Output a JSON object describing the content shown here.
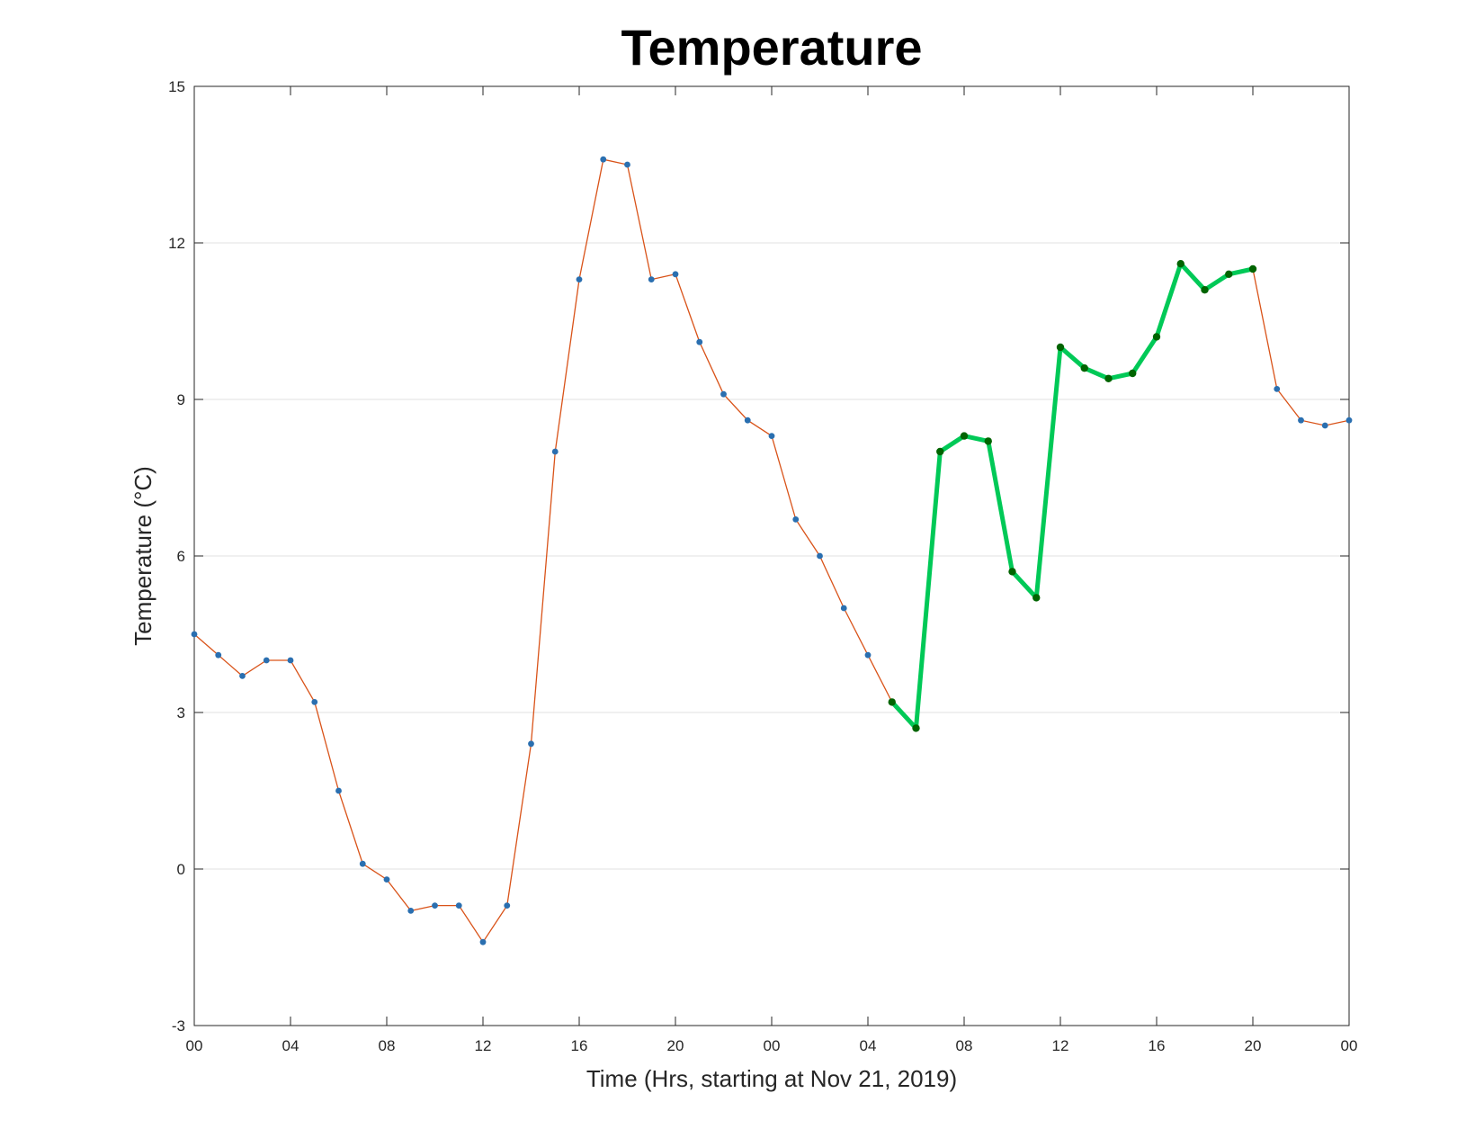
{
  "chart_data": {
    "type": "line",
    "title": "Temperature",
    "xlabel": "Time (Hrs, starting at Nov 21, 2019)",
    "ylabel": "Temperature (°C)",
    "xlim": [
      0,
      48
    ],
    "ylim": [
      -3,
      15
    ],
    "yticks": [
      -3,
      0,
      3,
      6,
      9,
      12,
      15
    ],
    "xtick_positions": [
      0,
      4,
      8,
      12,
      16,
      20,
      24,
      28,
      32,
      36,
      40,
      44,
      48
    ],
    "xtick_labels": [
      "00",
      "04",
      "08",
      "12",
      "16",
      "20",
      "00",
      "04",
      "08",
      "12",
      "16",
      "20",
      "00"
    ],
    "grid": "horizontal",
    "x": [
      0,
      1,
      2,
      3,
      4,
      5,
      6,
      7,
      8,
      9,
      10,
      11,
      12,
      13,
      14,
      15,
      16,
      17,
      18,
      19,
      20,
      21,
      22,
      23,
      24,
      25,
      26,
      27,
      28,
      29,
      30,
      31,
      32,
      33,
      34,
      35,
      36,
      37,
      38,
      39,
      40,
      41,
      42,
      43,
      44,
      45,
      46,
      47,
      48
    ],
    "values": [
      4.5,
      4.1,
      3.7,
      4.0,
      4.0,
      3.2,
      1.5,
      0.1,
      -0.2,
      -0.8,
      -0.7,
      -0.7,
      -1.4,
      -0.7,
      2.4,
      8.0,
      11.3,
      13.6,
      13.5,
      11.3,
      11.4,
      10.1,
      9.1,
      8.6,
      8.3,
      6.7,
      6.0,
      5.0,
      4.1,
      3.2,
      2.7,
      8.0,
      8.3,
      8.2,
      5.7,
      5.2,
      10.0,
      9.6,
      9.4,
      9.5,
      10.2,
      11.6,
      11.1,
      11.4,
      11.5,
      9.2,
      8.6,
      8.5,
      8.6
    ],
    "highlight_range": [
      29,
      44
    ],
    "colors": {
      "line": "#d95319",
      "marker": "#2a6fb0",
      "highlight_line": "#00c957",
      "highlight_marker": "#006400",
      "grid": "#e0e0e0",
      "axis": "#262626"
    }
  }
}
